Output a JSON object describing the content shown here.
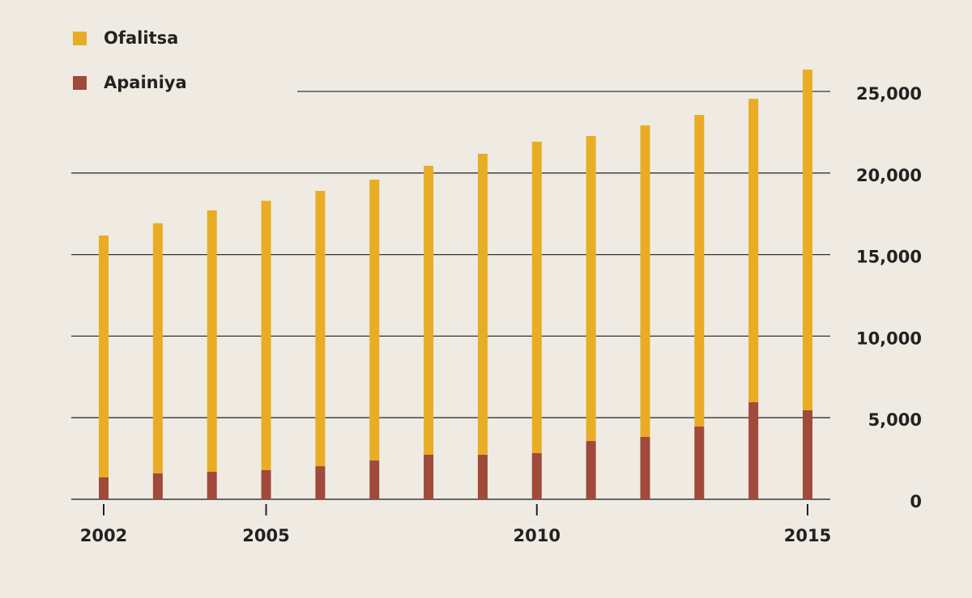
{
  "chart_data": {
    "type": "stacked_bar",
    "categories": [
      "2002",
      null,
      null,
      "2005",
      null,
      null,
      null,
      null,
      "2010",
      null,
      null,
      null,
      null,
      "2015"
    ],
    "series": [
      {
        "name": "Apainiya",
        "color": "#a1493a",
        "values": [
          1340,
          1590,
          1690,
          1790,
          2030,
          2380,
          2730,
          2730,
          2830,
          3570,
          3820,
          4460,
          5950,
          5460
        ]
      },
      {
        "name": "Ofalitsa",
        "color": "#e8ad24",
        "values": [
          14830,
          15330,
          16020,
          16510,
          16870,
          17210,
          17710,
          18450,
          19090,
          18700,
          19100,
          19100,
          18600,
          20880
        ]
      }
    ],
    "ylim": [
      0,
      27000
    ],
    "yticks": [
      0,
      {
        "value": 5000,
        "label": "5,000"
      },
      {
        "value": 10000,
        "label": "10,000"
      },
      {
        "value": 15000,
        "label": "15,000"
      },
      {
        "value": 20000,
        "label": "20,000"
      },
      {
        "value": 25000,
        "label": "25,000"
      }
    ],
    "grid": true,
    "legend": "upper left"
  }
}
